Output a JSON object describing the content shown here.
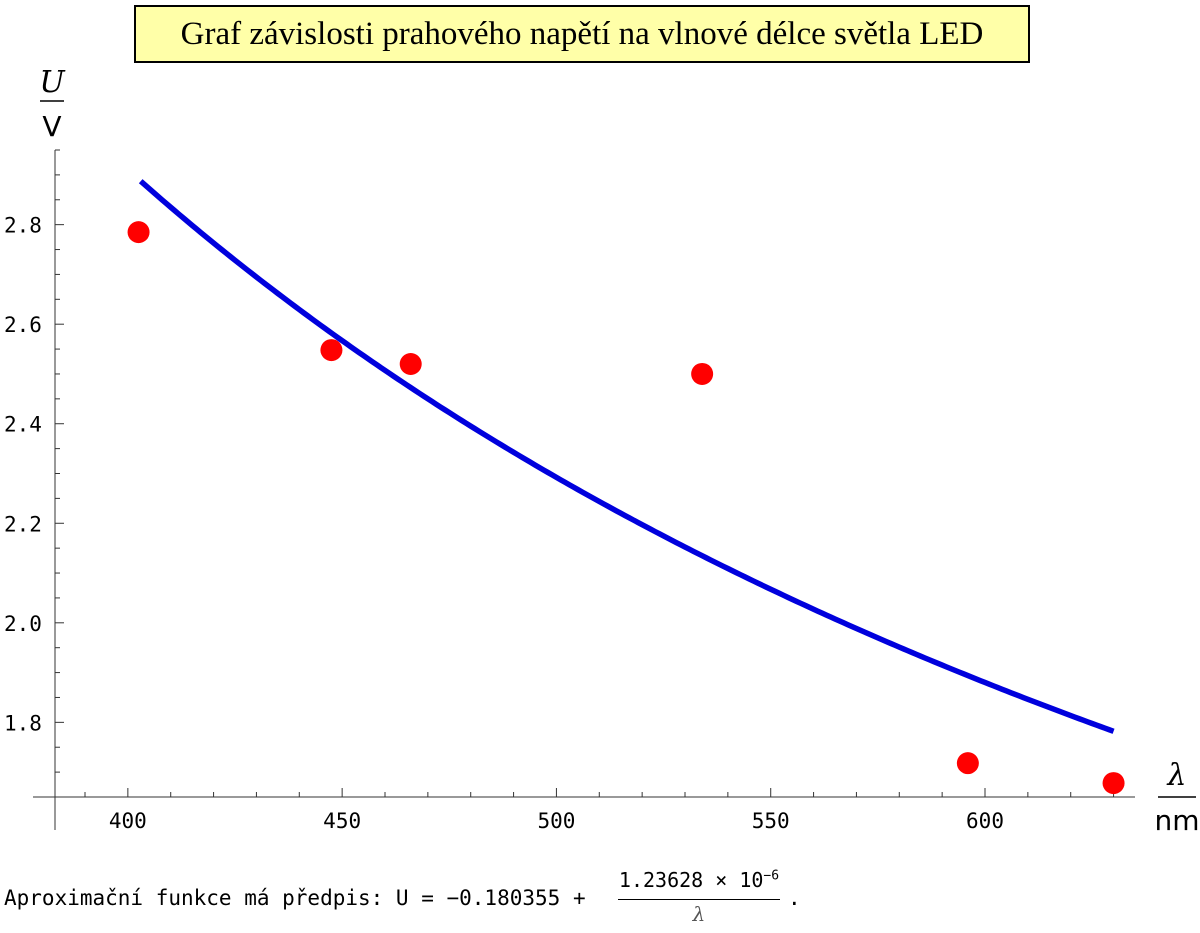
{
  "title": "Graf závislosti prahového napětí na vlnové délce světla LED",
  "formula": {
    "prefix": "Aproximační funkce má předpis: U = −0.180355 +",
    "numerator_mantissa": "1.23628 × 10",
    "numerator_exponent": "−6",
    "denominator": "λ",
    "suffix": "."
  },
  "chart_data": {
    "type": "scatter",
    "title": "Graf závislosti prahového napětí na vlnové délce světla LED",
    "x_unit_symbol": "λ",
    "x_unit": "nm",
    "y_unit_symbol": "U",
    "y_unit": "V",
    "xlim": [
      383,
      635
    ],
    "ylim": [
      1.65,
      2.95
    ],
    "x_ticks": [
      400,
      450,
      500,
      550,
      600
    ],
    "x_tick_labels": [
      "400",
      "450",
      "500",
      "550",
      "600"
    ],
    "y_ticks": [
      1.8,
      2.0,
      2.2,
      2.4,
      2.6,
      2.8
    ],
    "y_tick_labels": [
      "1.8",
      "2.0",
      "2.2",
      "2.4",
      "2.6",
      "2.8"
    ],
    "grid": false,
    "points": [
      {
        "x": 402.5,
        "y": 2.785
      },
      {
        "x": 447.5,
        "y": 2.548
      },
      {
        "x": 466,
        "y": 2.52
      },
      {
        "x": 534,
        "y": 2.5
      },
      {
        "x": 596,
        "y": 1.718
      },
      {
        "x": 630,
        "y": 1.678
      }
    ],
    "fit": {
      "a": -0.180355,
      "b": 1.23628e-06,
      "x_range": [
        403,
        630
      ]
    },
    "colors": {
      "points": "#ff0000",
      "fit": "#0000dd",
      "title_bg": "#ffffa8"
    }
  }
}
